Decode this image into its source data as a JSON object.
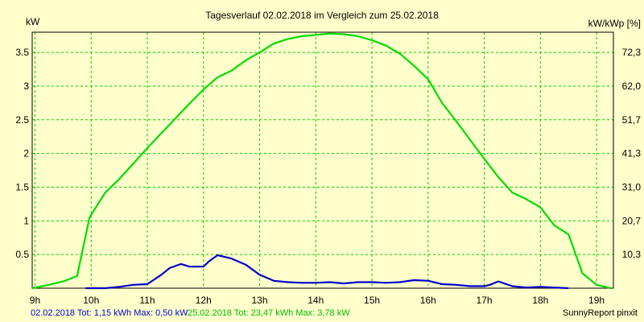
{
  "chart_data": {
    "type": "line",
    "title": "Tagesverlauf 02.02.2018 im Vergleich zum 25.02.2018",
    "ylabel": "kW",
    "y2label": "kW/kWp [%]",
    "ylim": [
      0,
      3.8
    ],
    "xlim": [
      8.95,
      19.3
    ],
    "grid": true,
    "x_ticks": [
      "9h",
      "10h",
      "11h",
      "12h",
      "13h",
      "14h",
      "15h",
      "16h",
      "17h",
      "18h",
      "19h"
    ],
    "y_ticks": [
      "0.5",
      "1",
      "1.5",
      "2",
      "2.5",
      "3",
      "3.5"
    ],
    "y2_ticks": [
      "10,3",
      "20,7",
      "31,0",
      "41,3",
      "51,7",
      "62,0",
      "72,3"
    ],
    "series": [
      {
        "name": "02.02.2018",
        "color": "#0000cc",
        "x": [
          9.9,
          10.0,
          10.25,
          10.5,
          10.75,
          11.0,
          11.25,
          11.4,
          11.6,
          11.75,
          12.0,
          12.1,
          12.25,
          12.5,
          12.75,
          13.0,
          13.25,
          13.5,
          13.75,
          14.0,
          14.25,
          14.5,
          14.75,
          15.0,
          15.25,
          15.5,
          15.75,
          16.0,
          16.25,
          16.5,
          16.75,
          17.0,
          17.1,
          17.25,
          17.5,
          17.75,
          18.0,
          18.25,
          18.5
        ],
        "values": [
          0.0,
          0.0,
          0.0,
          0.02,
          0.05,
          0.06,
          0.2,
          0.3,
          0.36,
          0.32,
          0.32,
          0.4,
          0.49,
          0.44,
          0.35,
          0.2,
          0.11,
          0.09,
          0.08,
          0.08,
          0.09,
          0.07,
          0.09,
          0.09,
          0.08,
          0.09,
          0.12,
          0.11,
          0.06,
          0.05,
          0.03,
          0.03,
          0.05,
          0.1,
          0.03,
          0.01,
          0.02,
          0.01,
          0.0
        ]
      },
      {
        "name": "25.02.2018",
        "color": "#00dd00",
        "x": [
          8.95,
          9.25,
          9.5,
          9.75,
          9.97,
          10.25,
          10.5,
          10.75,
          11.0,
          11.25,
          11.5,
          11.75,
          12.0,
          12.25,
          12.5,
          12.75,
          13.0,
          13.25,
          13.5,
          13.75,
          14.0,
          14.25,
          14.5,
          14.75,
          15.0,
          15.25,
          15.5,
          15.75,
          16.0,
          16.25,
          16.5,
          16.75,
          17.0,
          17.25,
          17.5,
          17.75,
          18.0,
          18.25,
          18.5,
          18.75,
          19.0,
          19.25
        ],
        "values": [
          0.0,
          0.05,
          0.1,
          0.18,
          1.05,
          1.42,
          1.62,
          1.85,
          2.08,
          2.3,
          2.52,
          2.74,
          2.95,
          3.13,
          3.23,
          3.38,
          3.5,
          3.63,
          3.7,
          3.74,
          3.76,
          3.78,
          3.77,
          3.74,
          3.68,
          3.6,
          3.48,
          3.3,
          3.1,
          2.75,
          2.48,
          2.2,
          1.92,
          1.65,
          1.42,
          1.32,
          1.2,
          0.93,
          0.8,
          0.22,
          0.05,
          0.0
        ]
      }
    ]
  },
  "footer": {
    "s1_label": "02.02.2018 Tot: 1,15 kWh Max: 0,50 kW",
    "s2_label": "25.02.2018 Tot: 23,47 kWh Max: 3,78 kW",
    "brand": "SunnyReport pinxit"
  }
}
